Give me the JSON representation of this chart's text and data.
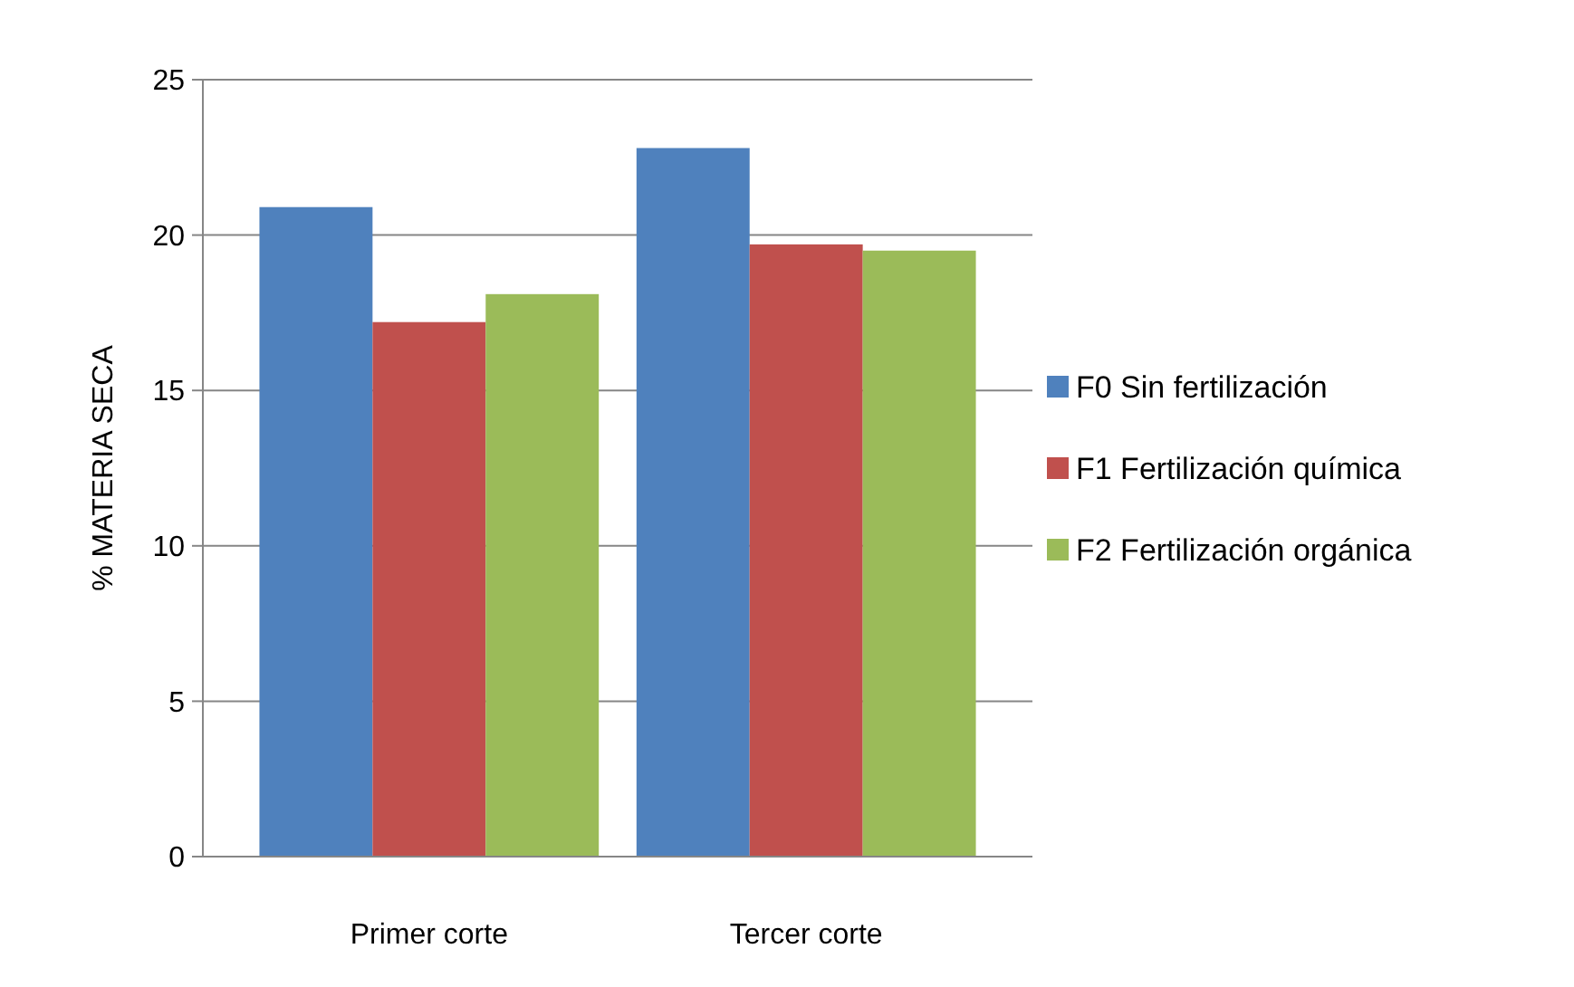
{
  "chart_data": {
    "type": "bar",
    "ylabel": "% MATERIA SECA",
    "categories": [
      "Primer corte",
      "Tercer corte"
    ],
    "series": [
      {
        "name": "F0 Sin fertilización",
        "color": "#4f81bd",
        "values": [
          20.9,
          22.8
        ]
      },
      {
        "name": "F1 Fertilización química",
        "color": "#c0504d",
        "values": [
          17.2,
          19.7
        ]
      },
      {
        "name": "F2 Fertilización orgánica",
        "color": "#9bbb59",
        "values": [
          18.1,
          19.5
        ]
      }
    ],
    "ylim": [
      0,
      25
    ],
    "yticks": [
      0,
      5,
      10,
      15,
      20,
      25
    ],
    "grid": "y",
    "legend": "right"
  }
}
